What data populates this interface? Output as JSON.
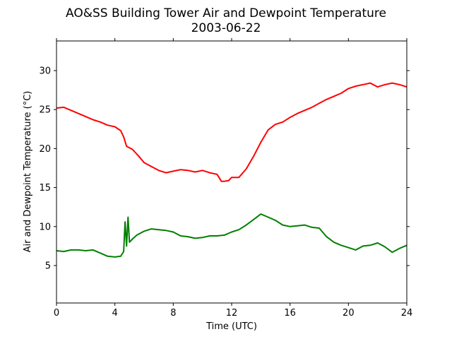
{
  "chart_data": {
    "type": "line",
    "title": "AO&SS Building Tower Air and Dewpoint Temperature",
    "subtitle": "2003-06-22",
    "xlabel": "Time (UTC)",
    "ylabel": "Air and Dewpoint Temperature (°C)",
    "xlim": [
      0,
      24
    ],
    "ylim": [
      0.2,
      33.8
    ],
    "xticks": [
      0,
      4,
      8,
      12,
      16,
      20,
      24
    ],
    "yticks": [
      5,
      10,
      15,
      20,
      25,
      30
    ],
    "grid": false,
    "legend": "none",
    "series": [
      {
        "color": "#ff0000",
        "x": [
          0,
          0.5,
          1,
          1.5,
          2,
          2.5,
          3,
          3.5,
          4,
          4.4,
          4.6,
          4.8,
          5.2,
          5.6,
          6,
          6.5,
          7,
          7.5,
          8,
          8.5,
          9,
          9.5,
          10,
          10.5,
          11,
          11.3,
          11.5,
          11.8,
          12,
          12.5,
          13,
          13.5,
          14,
          14.5,
          15,
          15.5,
          16,
          16.5,
          17,
          17.5,
          18,
          18.5,
          19,
          19.5,
          20,
          20.5,
          21,
          21.5,
          22,
          22.5,
          23,
          23.5,
          24
        ],
        "y": [
          25.2,
          25.3,
          24.9,
          24.5,
          24.1,
          23.7,
          23.4,
          23.0,
          22.8,
          22.3,
          21.5,
          20.3,
          19.9,
          19.1,
          18.2,
          17.7,
          17.2,
          16.9,
          17.1,
          17.3,
          17.2,
          17.0,
          17.2,
          16.9,
          16.7,
          15.8,
          15.8,
          15.9,
          16.3,
          16.3,
          17.4,
          19.0,
          20.8,
          22.4,
          23.1,
          23.4,
          24.0,
          24.5,
          24.9,
          25.3,
          25.8,
          26.3,
          26.7,
          27.1,
          27.7,
          28.0,
          28.2,
          28.4,
          27.9,
          28.2,
          28.4,
          28.2,
          27.9
        ]
      },
      {
        "color": "#008000",
        "x": [
          0,
          0.5,
          1,
          1.5,
          2,
          2.5,
          3,
          3.5,
          4,
          4.4,
          4.6,
          4.7,
          4.8,
          4.9,
          5.0,
          5.2,
          5.5,
          6,
          6.5,
          7,
          7.5,
          8,
          8.5,
          9,
          9.5,
          10,
          10.5,
          11,
          11.5,
          12,
          12.5,
          13,
          13.5,
          14,
          14.5,
          15,
          15.5,
          16,
          16.5,
          17,
          17.5,
          18,
          18.5,
          19,
          19.5,
          20,
          20.5,
          21,
          21.5,
          22,
          22.5,
          23,
          23.5,
          24
        ],
        "y": [
          6.9,
          6.8,
          7.0,
          7.0,
          6.9,
          7.0,
          6.6,
          6.2,
          6.1,
          6.2,
          6.8,
          10.6,
          7.5,
          11.2,
          8.0,
          8.4,
          8.9,
          9.4,
          9.7,
          9.6,
          9.5,
          9.3,
          8.8,
          8.7,
          8.5,
          8.6,
          8.8,
          8.8,
          8.9,
          9.3,
          9.6,
          10.2,
          10.9,
          11.6,
          11.2,
          10.8,
          10.2,
          10.0,
          10.1,
          10.2,
          9.9,
          9.8,
          8.7,
          8.0,
          7.6,
          7.3,
          7.0,
          7.5,
          7.6,
          7.9,
          7.4,
          6.7,
          7.2,
          7.6
        ]
      }
    ]
  }
}
